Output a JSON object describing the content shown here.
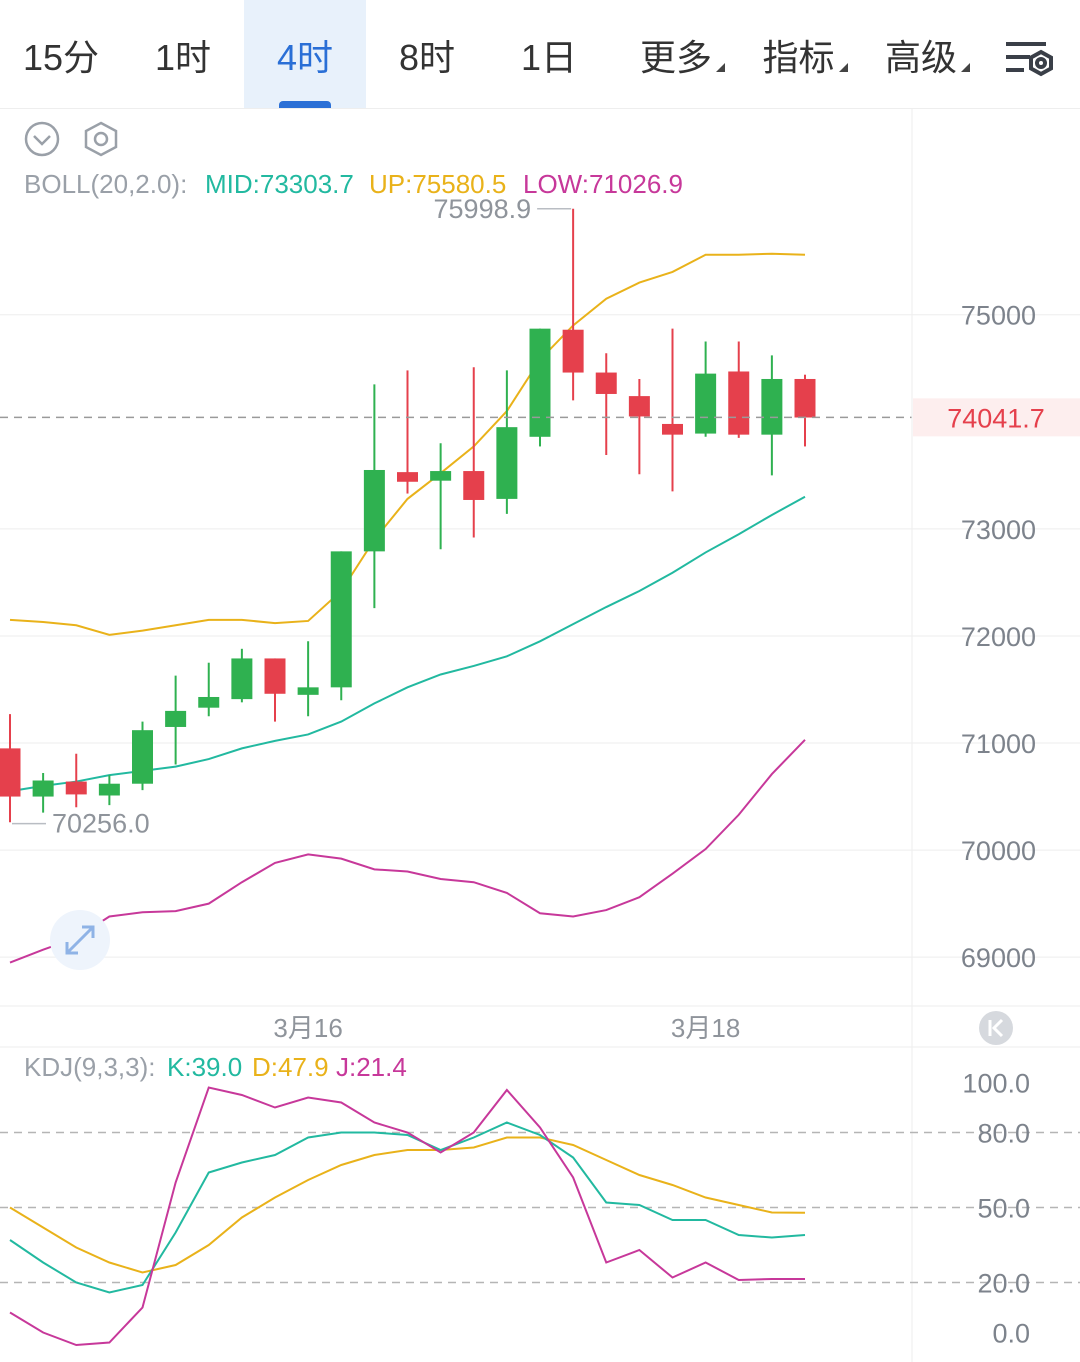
{
  "tabs": [
    {
      "label": "15分",
      "active": false,
      "dropdown": false
    },
    {
      "label": "1时",
      "active": false,
      "dropdown": false
    },
    {
      "label": "4时",
      "active": true,
      "dropdown": false
    },
    {
      "label": "8时",
      "active": false,
      "dropdown": false
    },
    {
      "label": "1日",
      "active": false,
      "dropdown": false
    },
    {
      "label": "更多",
      "active": false,
      "dropdown": true
    },
    {
      "label": "指标",
      "active": false,
      "dropdown": true
    },
    {
      "label": "高级",
      "active": false,
      "dropdown": true
    }
  ],
  "icons": {
    "settings": "chart-settings-icon",
    "collapse": "chevron-circle-down-icon",
    "indicator_settings": "hexagon-gear-icon",
    "expand": "expand-arrows-icon",
    "back": "jump-to-latest-icon"
  },
  "colors": {
    "up": "#2fb150",
    "down": "#e5404c",
    "mid": "#22b9a0",
    "upper": "#e9b21a",
    "lower": "#c7389a",
    "accent": "#2a6fd6",
    "grid": "#eeeeee"
  },
  "chart_data": [
    {
      "type": "candlestick",
      "indicator_label": "BOLL(20,2.0):",
      "mid_label": "MID:73303.7",
      "up_label": "UP:75580.5",
      "low_label": "LOW:71026.9",
      "max_label": "75998.9",
      "min_label": "70256.0",
      "max_value": 75998.9,
      "min_value": 70256.0,
      "last_price": 74041.7,
      "last_price_label": "74041.7",
      "y_ticks": [
        "75000",
        "73000",
        "72000",
        "71000",
        "70000",
        "69000"
      ],
      "y_tick_values": [
        75000,
        73000,
        72000,
        71000,
        70000,
        69000
      ],
      "ylim": [
        68600,
        76800
      ],
      "x_labels": [
        {
          "label": "3月16",
          "index": 9
        },
        {
          "label": "3月18",
          "index": 21
        }
      ],
      "candles": [
        {
          "o": 70950,
          "c": 70500,
          "h": 71270,
          "l": 70260
        },
        {
          "o": 70500,
          "c": 70650,
          "h": 70720,
          "l": 70350
        },
        {
          "o": 70640,
          "c": 70520,
          "h": 70900,
          "l": 70400
        },
        {
          "o": 70510,
          "c": 70620,
          "h": 70700,
          "l": 70420
        },
        {
          "o": 70620,
          "c": 71120,
          "h": 71200,
          "l": 70560
        },
        {
          "o": 71150,
          "c": 71300,
          "h": 71630,
          "l": 70800
        },
        {
          "o": 71330,
          "c": 71430,
          "h": 71750,
          "l": 71250
        },
        {
          "o": 71410,
          "c": 71790,
          "h": 71880,
          "l": 71380
        },
        {
          "o": 71790,
          "c": 71460,
          "h": 71790,
          "l": 71200
        },
        {
          "o": 71450,
          "c": 71520,
          "h": 71950,
          "l": 71250
        },
        {
          "o": 71520,
          "c": 72790,
          "h": 72790,
          "l": 71400
        },
        {
          "o": 72790,
          "c": 73550,
          "h": 74350,
          "l": 72260
        },
        {
          "o": 73530,
          "c": 73440,
          "h": 74480,
          "l": 73330
        },
        {
          "o": 73450,
          "c": 73540,
          "h": 73800,
          "l": 72810
        },
        {
          "o": 73540,
          "c": 73270,
          "h": 74510,
          "l": 72920
        },
        {
          "o": 73280,
          "c": 73950,
          "h": 74480,
          "l": 73140
        },
        {
          "o": 73860,
          "c": 74870,
          "h": 74870,
          "l": 73770
        },
        {
          "o": 74860,
          "c": 74460,
          "h": 75990,
          "l": 74200
        },
        {
          "o": 74460,
          "c": 74260,
          "h": 74640,
          "l": 73690
        },
        {
          "o": 74240,
          "c": 74050,
          "h": 74400,
          "l": 73510
        },
        {
          "o": 73980,
          "c": 73880,
          "h": 74870,
          "l": 73350
        },
        {
          "o": 73890,
          "c": 74450,
          "h": 74750,
          "l": 73860
        },
        {
          "o": 74470,
          "c": 73880,
          "h": 74750,
          "l": 73850
        },
        {
          "o": 73880,
          "c": 74400,
          "h": 74620,
          "l": 73500
        },
        {
          "o": 74400,
          "c": 74040,
          "h": 74440,
          "l": 73770
        }
      ],
      "upper": [
        72150,
        72130,
        72100,
        72010,
        72050,
        72100,
        72150,
        72150,
        72120,
        72140,
        72420,
        72900,
        73280,
        73520,
        73770,
        74100,
        74580,
        74900,
        75150,
        75300,
        75400,
        75560,
        75560,
        75570,
        75560
      ],
      "mid": [
        70550,
        70600,
        70640,
        70700,
        70740,
        70780,
        70850,
        70950,
        71020,
        71080,
        71200,
        71370,
        71520,
        71640,
        71720,
        71810,
        71950,
        72110,
        72270,
        72420,
        72590,
        72780,
        72950,
        73130,
        73300
      ],
      "lower": [
        68950,
        69070,
        69180,
        69380,
        69420,
        69430,
        69500,
        69700,
        69880,
        69960,
        69920,
        69820,
        69800,
        69730,
        69700,
        69600,
        69410,
        69380,
        69440,
        69560,
        69780,
        70010,
        70330,
        70710,
        71030
      ]
    },
    {
      "type": "line",
      "indicator_label": "KDJ(9,3,3):",
      "k_label": "K:39.0",
      "d_label": "D:47.9",
      "j_label": "J:21.4",
      "y_ticks": [
        "100.0",
        "80.0",
        "50.0",
        "20.0",
        "0.0"
      ],
      "y_tick_values": [
        100,
        80,
        50,
        20,
        0
      ],
      "ylim": [
        -5,
        105
      ],
      "k": [
        37,
        28,
        20,
        16,
        19,
        40,
        64,
        68,
        71,
        78,
        80,
        80,
        79,
        73,
        78,
        84,
        79,
        70,
        52,
        51,
        45,
        45,
        39,
        38,
        39
      ],
      "d": [
        50,
        42,
        34,
        28,
        24,
        27,
        35,
        46,
        54,
        61,
        67,
        71,
        73,
        73,
        74,
        78,
        78,
        75,
        69,
        63,
        59,
        54,
        51,
        48,
        47.9
      ],
      "j": [
        8,
        0,
        -5,
        -4,
        10,
        60,
        98,
        95,
        90,
        94,
        92,
        84,
        80,
        72,
        80,
        97,
        82,
        62,
        28,
        33,
        22,
        28,
        21,
        21.4,
        21.4
      ]
    }
  ]
}
